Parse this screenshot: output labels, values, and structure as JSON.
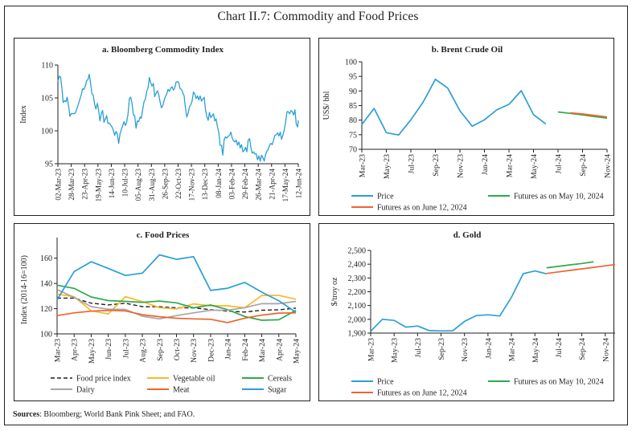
{
  "title": "Chart II.7: Commodity and Food Prices",
  "sources": {
    "label": "Sources",
    "text": ": Bloomberg; World Bank Pink Sheet; and FAO."
  },
  "colors": {
    "blue": "#2a9fd6",
    "green": "#2eaa4a",
    "orange": "#f0642c",
    "yellow": "#fbb829",
    "gray": "#a6a6a6",
    "black": "#231f20"
  },
  "chart_data": [
    {
      "id": "a",
      "type": "line",
      "title": "a. Bloomberg Commodity Index",
      "ylabel": "Index",
      "xlabel": "",
      "ylim": [
        95,
        110
      ],
      "yticks": [
        95,
        100,
        105,
        110
      ],
      "xtick_labels": [
        "02-Mar-23",
        "28-Mar-23",
        "23-Apr-23",
        "19-May-23",
        "14-Jun-23",
        "10-Jul-23",
        "05-Aug-23",
        "31-Aug-23",
        "26-Sep-23",
        "22-Oct-23",
        "17-Nov-23",
        "13-Dec-23",
        "08-Jan-24",
        "03-Feb-24",
        "29-Feb-24",
        "26-Mar-24",
        "21-Apr-24",
        "17-May-24",
        "12-Jun-24"
      ],
      "series": [
        {
          "name": "Bloomberg Commodity Index",
          "color": "#2a9fd6",
          "x_index": [
            0,
            0.2,
            0.4,
            0.6,
            0.8,
            1,
            1.2,
            1.4,
            1.6,
            1.8,
            2,
            2.3,
            2.6,
            2.9,
            3.2,
            3.5,
            3.7,
            3.9,
            4.1,
            4.3,
            4.5,
            4.7,
            4.9,
            5.1,
            5.3,
            5.5,
            5.7,
            5.9,
            6.1,
            6.3,
            6.5,
            6.7,
            6.9,
            7.1,
            7.3,
            7.5,
            7.7,
            7.9,
            8.1,
            8.3,
            8.5,
            8.7,
            8.9,
            9.1,
            9.3,
            9.5,
            9.7,
            9.9,
            10.1,
            10.3,
            10.5,
            10.7,
            10.9,
            11.1,
            11.3,
            11.5,
            11.7,
            11.9,
            12.1,
            12.3,
            12.5,
            12.7,
            12.9,
            13.1,
            13.3,
            13.5,
            13.7,
            13.9,
            14.1,
            14.3,
            14.5,
            14.7,
            14.9,
            15.1,
            15.3,
            15.5,
            15.7,
            15.9,
            16.1,
            16.3,
            16.5,
            16.7,
            16.9,
            17.1,
            17.3,
            17.5,
            17.7,
            17.9,
            18.1,
            18.3,
            18.5,
            18.7,
            18.9,
            19.1,
            19.3,
            19.5,
            19.7,
            19.9,
            20.1,
            20.3,
            20.5,
            20.7,
            20.9,
            21.1,
            21.3,
            21.5,
            21.7,
            21.9,
            22.1,
            22.3,
            22.5,
            22.7,
            22.9,
            23.1,
            23.3,
            23.5,
            23.7,
            23.9,
            24.1,
            24.3,
            24.5,
            24.7,
            24.9,
            25.1,
            25.3,
            25.5,
            25.7,
            25.9,
            26.1,
            26.3,
            26.5,
            26.7,
            26.9,
            27.1,
            27.3,
            27.5,
            27.7,
            27.9,
            28.1,
            28.3,
            28.5,
            28.7,
            28.9,
            29.1,
            29.3,
            29.5,
            29.7,
            29.9,
            30.1,
            30.3,
            30.5,
            30.7,
            30.9,
            31.1,
            31.3,
            31.5,
            31.7,
            31.9,
            32.1,
            32.3,
            32.5,
            32.7,
            32.9,
            33.1,
            33.3,
            33.5,
            33.7,
            33.9,
            34.1,
            34.3,
            34.5,
            34.7,
            34.9,
            35.1,
            35.3,
            35.5,
            35.7,
            35.9,
            36
          ],
          "values": [
            107.5,
            108.3,
            108.2,
            106.5,
            104.3,
            104.6,
            104.4,
            105.1,
            103.8,
            102.2,
            102.6,
            102.6,
            102.7,
            103.5,
            104.5,
            105.5,
            106.4,
            106.3,
            106.8,
            107.6,
            107.8,
            108.6,
            107.2,
            105.6,
            105.4,
            104,
            103.3,
            104.2,
            103.1,
            101.5,
            102.6,
            103.1,
            101.3,
            101.8,
            102.3,
            101.1,
            101.2,
            100.9,
            100.6,
            100.1,
            99.3,
            99.9,
            99.5,
            98.1,
            99.5,
            100.2,
            100.8,
            101.4,
            100.8,
            101.3,
            102.5,
            104.9,
            105.1,
            104.2,
            102.4,
            102.3,
            100.4,
            101.5,
            101.4,
            102.1,
            101.9,
            103.3,
            104.4,
            104.8,
            106,
            106.5,
            108.1,
            107.3,
            106.8,
            107.2,
            105.2,
            105.7,
            106.1,
            105.5,
            104.4,
            103.5,
            103.8,
            104.6,
            105.2,
            105.6,
            106.3,
            106,
            106.5,
            106.7,
            106.2,
            106.5,
            107.4,
            107.5,
            107.3,
            106.4,
            106.3,
            105.8,
            105.3,
            103.5,
            102.1,
            102.7,
            103.6,
            104,
            104.5,
            105.9,
            105.6,
            104.9,
            105.3,
            104.7,
            105.3,
            104.5,
            104.8,
            105.1,
            103.2,
            102.2,
            101.6,
            102.8,
            102,
            102.3,
            102.6,
            101.5,
            101.8,
            100.6,
            99.7,
            97.8,
            97.8,
            96.3,
            98.7,
            99.1,
            98.9,
            99.2,
            99.3,
            99.8,
            98.9,
            98.5,
            98.3,
            98.6,
            97.8,
            98.3,
            97.4,
            97.9,
            96.8,
            97,
            97.5,
            96.8,
            98.6,
            98.8,
            97.5,
            96.6,
            96.8,
            96.5,
            96.5,
            95.6,
            96.2,
            95.4,
            96.3,
            95.9,
            95.4,
            96.4,
            96.9,
            97.2,
            97.8,
            98.1,
            97.9,
            98.6,
            99.3,
            99.4,
            99.7,
            99.2,
            99.8,
            98.7,
            99.4,
            100.2,
            101.3,
            102.9,
            102.9,
            102.6,
            103.1,
            102.9,
            102.4,
            103.2,
            101,
            100.6,
            101.6,
            102.2,
            102.6,
            102.9,
            103.6,
            105.2,
            107.1,
            106.3,
            105.4,
            106.5,
            104.2,
            102.6,
            101.4,
            103.3,
            102.1,
            103.2,
            102.9
          ]
        }
      ]
    },
    {
      "id": "b",
      "type": "line",
      "title": "b. Brent Crude Oil",
      "ylabel": "US$/ bbl",
      "xlabel": "",
      "ylim": [
        70,
        100
      ],
      "yticks": [
        70,
        75,
        80,
        85,
        90,
        95,
        100
      ],
      "x_months": [
        "Mar-23",
        "Apr-23",
        "May-23",
        "Jun-23",
        "Jul-23",
        "Aug-23",
        "Sep-23",
        "Oct-23",
        "Nov-23",
        "Dec-23",
        "Jan-24",
        "Feb-24",
        "Mar-24",
        "Apr-24",
        "May-24",
        "Jun-24",
        "Jul-24",
        "Aug-24",
        "Sep-24",
        "Oct-24",
        "Nov-24"
      ],
      "xtick_labels": [
        "Mar-23",
        "May-23",
        "Jul-23",
        "Sep-23",
        "Nov-23",
        "Jan-24",
        "Mar-24",
        "May-24",
        "Jul-24",
        "Sep-24",
        "Nov-24"
      ],
      "series": [
        {
          "name": "Price",
          "color": "#2a9fd6",
          "start_index": 0,
          "values": [
            78.5,
            84,
            75.7,
            74.9,
            80.1,
            86.2,
            94,
            91,
            83.2,
            77.9,
            80.1,
            83.5,
            85.4,
            90.1,
            81.9,
            78.7
          ]
        },
        {
          "name": "Futures as on May 10, 2024",
          "color": "#2eaa4a",
          "start_index": 16,
          "values": [
            82.8,
            82.3,
            81.8,
            81.2,
            80.7
          ]
        },
        {
          "name": "Futures as on June 12, 2024",
          "color": "#f0642c",
          "start_index": 17,
          "values": [
            82.5,
            82.1,
            81.6,
            81.1
          ]
        }
      ],
      "legend": [
        "Price",
        "Futures as on May 10, 2024",
        "Futures as on June 12, 2024"
      ],
      "legend_position": "bottom"
    },
    {
      "id": "c",
      "type": "line",
      "title": "c. Food Prices",
      "ylabel": "Index (2014-16=100)",
      "xlabel": "",
      "ylim": [
        100,
        170
      ],
      "yticks": [
        100,
        120,
        140,
        160
      ],
      "categories": [
        "Mar-23",
        "Apr-23",
        "May-23",
        "Jun-23",
        "Jul-23",
        "Aug-23",
        "Sep-23",
        "Oct-23",
        "Nov-23",
        "Dec-23",
        "Jan-24",
        "Feb-24",
        "Mar-24",
        "Apr-24",
        "May-24"
      ],
      "series": [
        {
          "name": "Food price index",
          "color": "#231f20",
          "dashed": true,
          "values": [
            128.3,
            128.4,
            124.4,
            123,
            124.3,
            121.6,
            121.5,
            120.7,
            120.6,
            119.2,
            118,
            117.3,
            118.8,
            119.1,
            120.4
          ]
        },
        {
          "name": "Vegetable oil",
          "color": "#fbb829",
          "values": [
            131.5,
            129.5,
            118.3,
            115.8,
            129.5,
            125.6,
            120.8,
            119.8,
            123.8,
            122.3,
            122.3,
            120.7,
            130.5,
            130.5,
            127.5
          ]
        },
        {
          "name": "Cereals",
          "color": "#2eaa4a",
          "values": [
            138.6,
            136.1,
            129.3,
            126.4,
            125.8,
            125,
            126,
            124.6,
            120.7,
            122.9,
            119.2,
            113.8,
            110.8,
            111.2,
            118.7
          ]
        },
        {
          "name": "Dairy",
          "color": "#a6a6a6",
          "values": [
            135.2,
            128.9,
            121.6,
            119.6,
            119.4,
            114,
            111.9,
            114.5,
            116.7,
            118.7,
            118.8,
            120.8,
            124,
            123.9,
            125.8
          ]
        },
        {
          "name": "Meat",
          "color": "#f0642c",
          "values": [
            114.5,
            116.7,
            118,
            118.7,
            118.2,
            115.2,
            113.6,
            112.4,
            111.9,
            111.6,
            109,
            112.5,
            114.9,
            116.5,
            116.7
          ]
        },
        {
          "name": "Sugar",
          "color": "#2a9fd6",
          "values": [
            127,
            149.4,
            157.2,
            151.9,
            146.3,
            148.2,
            162.7,
            159.1,
            161.2,
            134.4,
            136.2,
            140.8,
            133.1,
            126.3,
            117.1
          ]
        }
      ],
      "legend": [
        "Food price index",
        "Vegetable oil",
        "Cereals",
        "Dairy",
        "Meat",
        "Sugar"
      ],
      "legend_position": "bottom"
    },
    {
      "id": "d",
      "type": "line",
      "title": "d. Gold",
      "ylabel": "$/troy oz",
      "xlabel": "",
      "ylim": [
        1900,
        2500
      ],
      "yticks": [
        1900,
        2000,
        2100,
        2200,
        2300,
        2400,
        2500
      ],
      "ytick_labels": [
        "1,900",
        "2,000",
        "2,100",
        "2,200",
        "2,300",
        "2,400",
        "2,500"
      ],
      "x_months": [
        "Mar-23",
        "Apr-23",
        "May-23",
        "Jun-23",
        "Jul-23",
        "Aug-23",
        "Sep-23",
        "Oct-23",
        "Nov-23",
        "Dec-23",
        "Jan-24",
        "Feb-24",
        "Mar-24",
        "Apr-24",
        "May-24",
        "Jun-24",
        "Jul-24",
        "Aug-24",
        "Sep-24",
        "Oct-24",
        "Nov-24",
        "Dec-24"
      ],
      "xtick_labels": [
        "Mar-23",
        "May-23",
        "Jul-23",
        "Sep-23",
        "Nov-23",
        "Jan-24",
        "Mar-24",
        "May-24",
        "Jul-24",
        "Sep-24",
        "Nov-24"
      ],
      "series": [
        {
          "name": "Price",
          "color": "#2a9fd6",
          "start_index": 0,
          "values": [
            1913,
            2000,
            1992,
            1943,
            1951,
            1918,
            1916,
            1917,
            1985,
            2027,
            2033,
            2024,
            2160,
            2331,
            2351,
            2330
          ]
        },
        {
          "name": "Futures as on May 10, 2024",
          "color": "#2eaa4a",
          "start_index": 15,
          "values": [
            2374,
            2384,
            2395,
            2405,
            2418
          ]
        },
        {
          "name": "Futures as on June 12, 2024",
          "color": "#f0642c",
          "start_index": 15,
          "values": [
            2333,
            2344,
            2355,
            2366,
            2377,
            2388,
            2399
          ]
        }
      ],
      "legend": [
        "Price",
        "Futures as on May 10, 2024",
        "Futures as on June 12, 2024"
      ],
      "legend_position": "bottom"
    }
  ]
}
